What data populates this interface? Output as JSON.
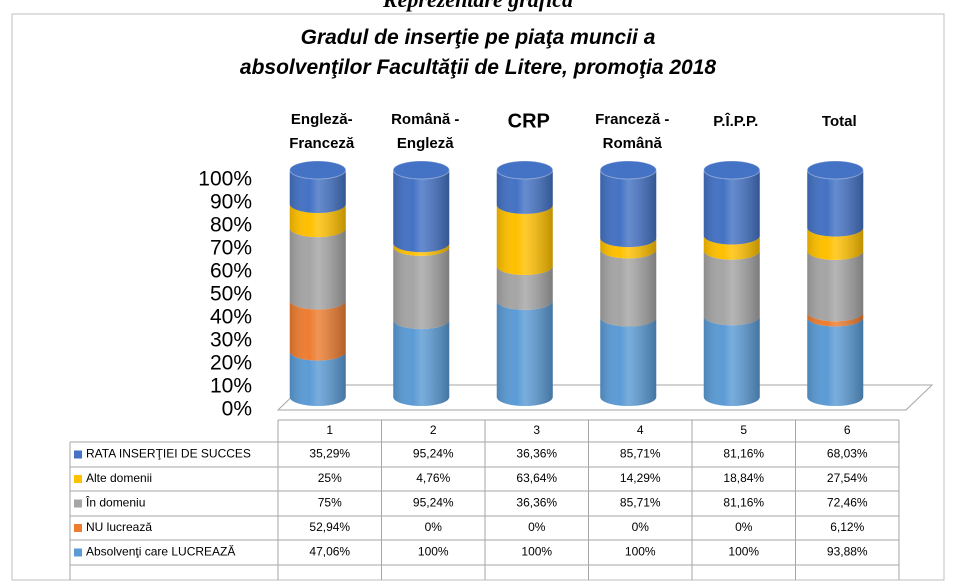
{
  "chart_data": {
    "type": "cylinder-stacked-percent",
    "heading": "Reprezentare grafică",
    "title": "Gradul de inserţie pe piaţa muncii a absolvenţilor Facultăţii de Litere, promoţia 2018",
    "column_labels": [
      "Engleză-Franceză",
      "Română - Engleză",
      "CRP",
      "Franceză - Română",
      "P.Î.P.P.",
      "Total"
    ],
    "categories": [
      "1",
      "2",
      "3",
      "4",
      "5",
      "6"
    ],
    "ylim": [
      0,
      100
    ],
    "yticks": [
      {
        "value": 0,
        "label": "0%"
      },
      {
        "value": 10,
        "label": "10%"
      },
      {
        "value": 20,
        "label": "20%"
      },
      {
        "value": 30,
        "label": "30%"
      },
      {
        "value": 40,
        "label": "40%"
      },
      {
        "value": 50,
        "label": "50%"
      },
      {
        "value": 60,
        "label": "60%"
      },
      {
        "value": 70,
        "label": "70%"
      },
      {
        "value": 80,
        "label": "80%"
      },
      {
        "value": 90,
        "label": "90%"
      },
      {
        "value": 100,
        "label": "100%"
      }
    ],
    "stacking": "percent",
    "series": [
      {
        "name": "RATA INSERŢIEI DE  SUCCES",
        "color": "#4472c4",
        "values": [
          35.29,
          95.24,
          36.36,
          85.71,
          81.16,
          68.03
        ],
        "value_labels": [
          "35,29%",
          "95,24%",
          "36,36%",
          "85,71%",
          "81,16%",
          "68,03%"
        ]
      },
      {
        "name": "Alte domenii",
        "color": "#ffc000",
        "values": [
          25,
          4.76,
          63.64,
          14.29,
          18.84,
          27.54
        ],
        "value_labels": [
          "25%",
          "4,76%",
          "63,64%",
          "14,29%",
          "18,84%",
          "27,54%"
        ]
      },
      {
        "name": "În  domeniu",
        "color": "#a5a5a5",
        "values": [
          75,
          95.24,
          36.36,
          85.71,
          81.16,
          72.46
        ],
        "value_labels": [
          "75%",
          "95,24%",
          "36,36%",
          "85,71%",
          "81,16%",
          "72,46%"
        ]
      },
      {
        "name": "NU lucrează",
        "color": "#ed7d31",
        "values": [
          52.94,
          0,
          0,
          0,
          0,
          6.12
        ],
        "value_labels": [
          "52,94%",
          "0%",
          "0%",
          "0%",
          "0%",
          "6,12%"
        ]
      },
      {
        "name": "Absolvenţi care LUCREAZĂ",
        "color": "#5b9bd5",
        "values": [
          47.06,
          100,
          100,
          100,
          100,
          93.88
        ],
        "value_labels": [
          "47,06%",
          "100%",
          "100%",
          "100%",
          "100%",
          "93,88%"
        ]
      }
    ]
  }
}
